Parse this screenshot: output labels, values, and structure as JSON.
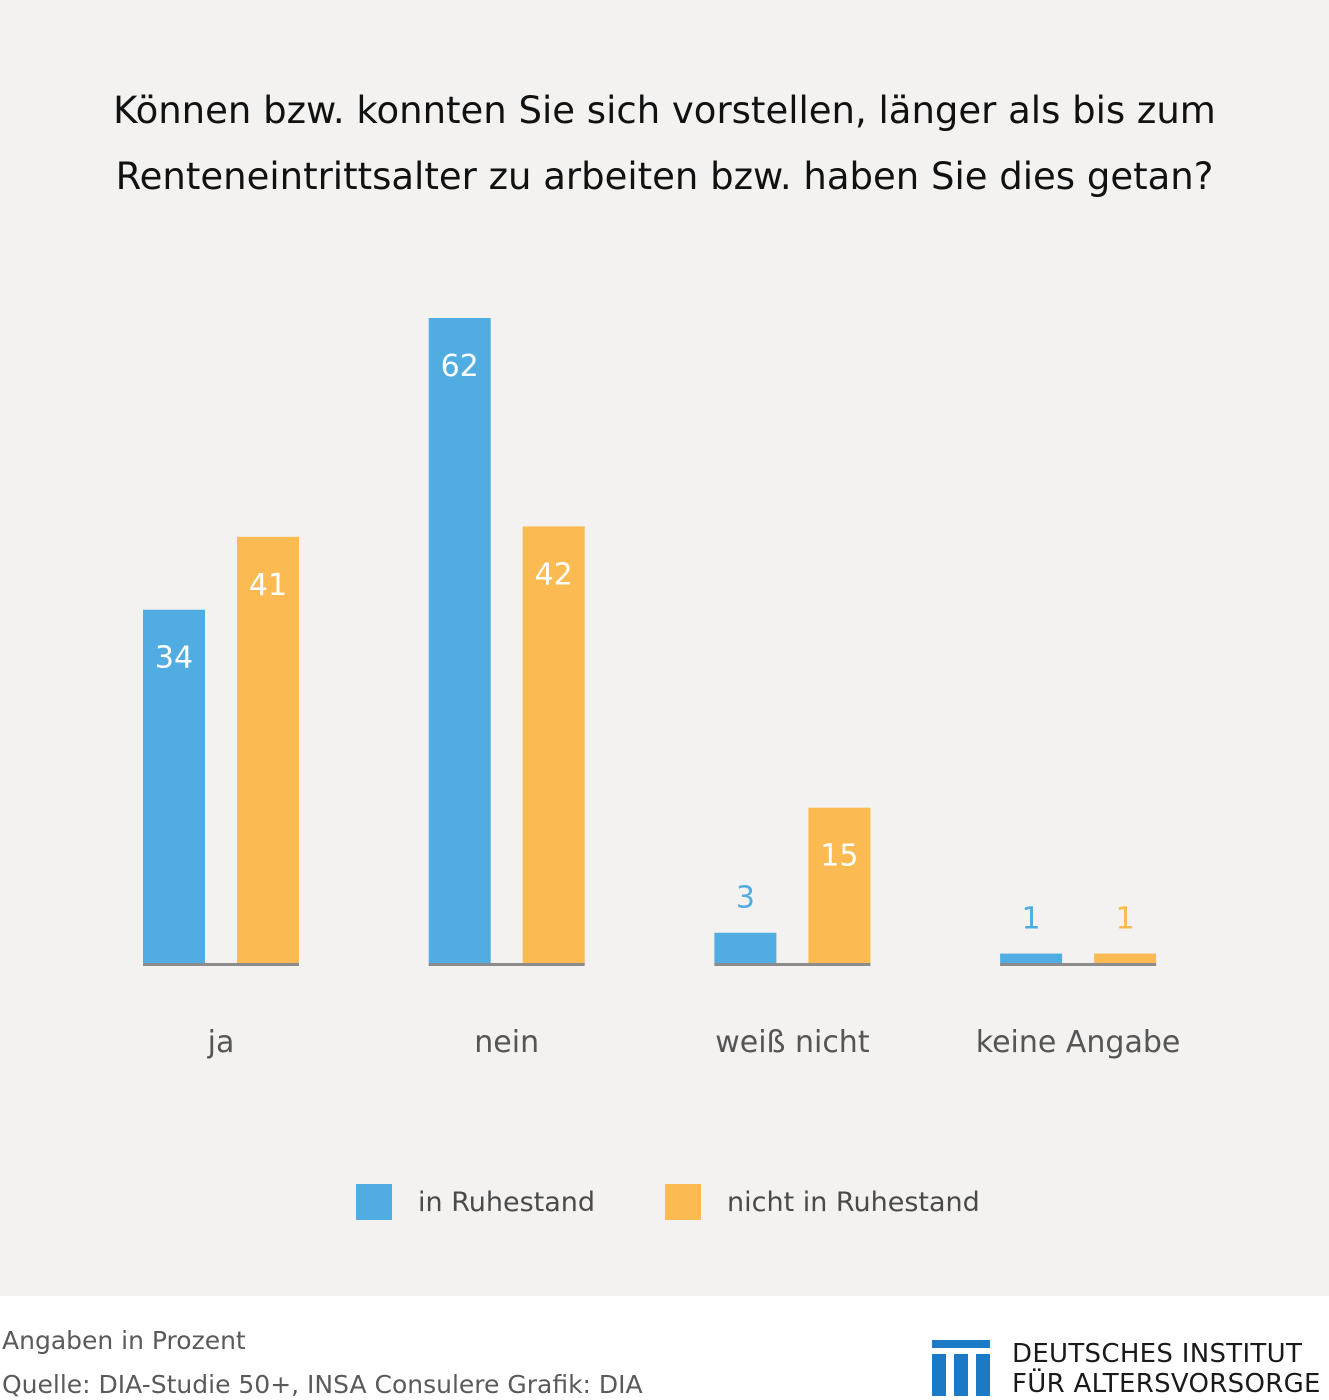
{
  "title": {
    "line1": "Können bzw. konnten Sie sich vorstellen, länger als bis zum",
    "line2": "Renteneintrittsalter zu arbeiten bzw. haben Sie dies getan?"
  },
  "chart_data": {
    "type": "bar",
    "title": "Können bzw. konnten Sie sich vorstellen, länger als bis zum Renteneintrittsalter zu arbeiten bzw. haben Sie dies getan?",
    "categories": [
      "ja",
      "nein",
      "weiß nicht",
      "keine Angabe"
    ],
    "series": [
      {
        "name": "in Ruhestand",
        "values": [
          34,
          62,
          3,
          1
        ],
        "color": "#51ade1"
      },
      {
        "name": "nicht in Ruhestand",
        "values": [
          41,
          42,
          15,
          1
        ],
        "color": "#fbba52"
      }
    ],
    "ylim": [
      0,
      62
    ],
    "grid": false,
    "axis_color": "#8c8c8c",
    "legend_position": "bottom",
    "data_labels": true
  },
  "legend": {
    "items": [
      {
        "label": "in Ruhestand",
        "color": "#51ade1"
      },
      {
        "label": "nicht in Ruhestand",
        "color": "#fbba52"
      }
    ]
  },
  "footer": {
    "note_units": "Angaben in Prozent",
    "note_source": "Quelle: DIA-Studie 50+, INSA Consulere  Grafik: DIA"
  },
  "logo": {
    "line1": "DEUTSCHES INSTITUT",
    "line2": "FÜR ALTERSVORSORGE",
    "color": "#1b79c6",
    "icon": "dia-logo-icon"
  }
}
